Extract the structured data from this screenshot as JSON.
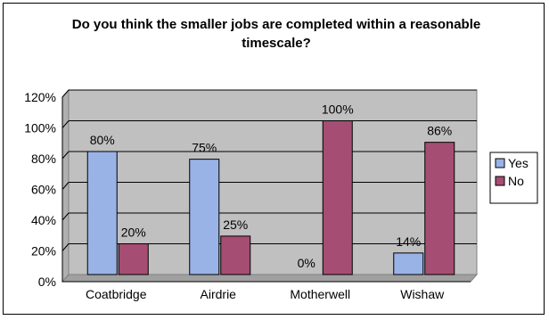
{
  "chart_data": {
    "type": "bar",
    "title": "Do you think the smaller jobs are completed within a reasonable timescale?",
    "categories": [
      "Coatbridge",
      "Airdrie",
      "Motherwell",
      "Wishaw"
    ],
    "series": [
      {
        "name": "Yes",
        "color": "#99b3e6",
        "values": [
          80,
          75,
          0,
          14
        ],
        "labels": [
          "80%",
          "75%",
          "0%",
          "14%"
        ]
      },
      {
        "name": "No",
        "color": "#a64d73",
        "values": [
          20,
          25,
          100,
          86
        ],
        "labels": [
          "20%",
          "25%",
          "100%",
          "86%"
        ]
      }
    ],
    "yticks": [
      "0%",
      "20%",
      "40%",
      "60%",
      "80%",
      "100%",
      "120%"
    ],
    "ylim": [
      0,
      120
    ],
    "plot_background": "#c0c0c0",
    "grid": true,
    "legend_position": "right"
  }
}
